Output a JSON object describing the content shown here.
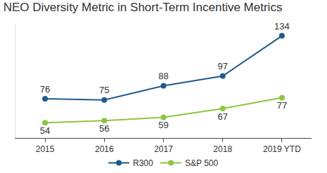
{
  "chart_data": {
    "type": "line",
    "title": "NEO Diversity Metric in Short-Term Incentive Metrics",
    "categories": [
      "2015",
      "2016",
      "2017",
      "2018",
      "2019 YTD"
    ],
    "series": [
      {
        "name": "R300",
        "color": "#1f5a8c",
        "values": [
          76,
          75,
          88,
          97,
          134
        ]
      },
      {
        "name": "S&P 500",
        "color": "#8dc63f",
        "values": [
          54,
          56,
          59,
          67,
          77
        ]
      }
    ],
    "ylim": [
      40,
      145
    ],
    "yticks": [],
    "tick_labels": "x",
    "data_labels": true,
    "legend": "bottom",
    "grid": false,
    "marker": "circle"
  }
}
